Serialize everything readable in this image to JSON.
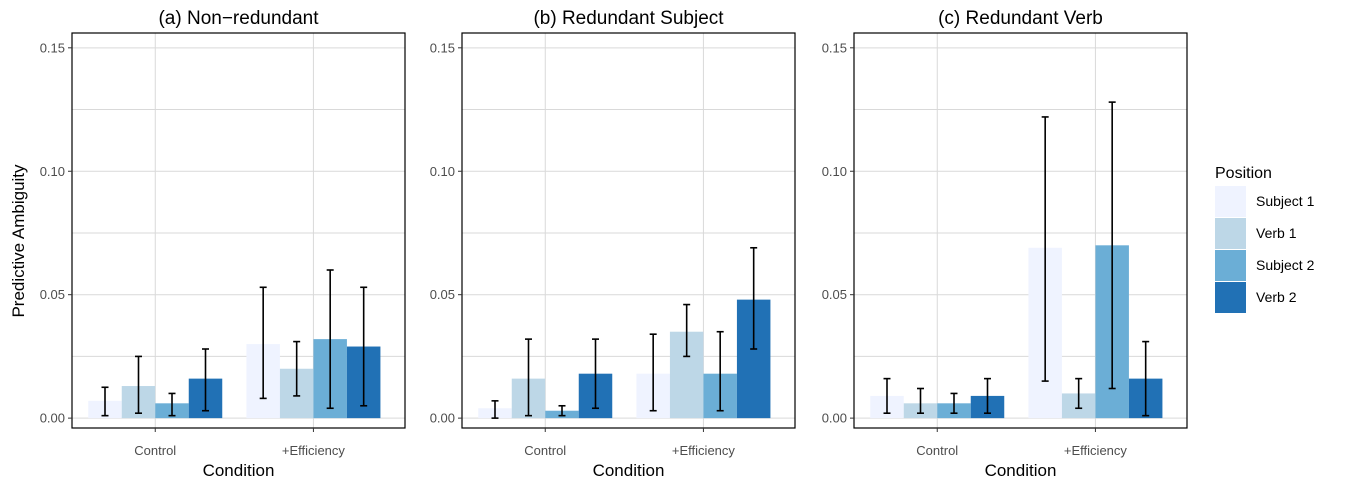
{
  "chart_data": {
    "type": "bar",
    "ylabel": "Predictive Ambiguity",
    "xlabel": "Condition",
    "ylim": [
      -0.004,
      0.156
    ],
    "yticks": [
      0.0,
      0.05,
      0.1,
      0.15
    ],
    "ytick_labels": [
      "0.00",
      "0.05",
      "0.10",
      "0.15"
    ],
    "categories": [
      "Control",
      "+Efficiency"
    ],
    "legend": {
      "title": "Position",
      "placement": "right",
      "entries": [
        "Subject 1",
        "Verb 1",
        "Subject 2",
        "Verb 2"
      ]
    },
    "colors": [
      "#EFF3FF",
      "#BDD7E7",
      "#6BAED6",
      "#2171B5"
    ],
    "grid": true,
    "panels": [
      {
        "title": "(a) Non−redundant",
        "series": [
          {
            "name": "Subject 1",
            "values": [
              0.007,
              0.03
            ],
            "err_low": [
              0.001,
              0.008
            ],
            "err_high": [
              0.0125,
              0.053
            ]
          },
          {
            "name": "Verb 1",
            "values": [
              0.013,
              0.02
            ],
            "err_low": [
              0.002,
              0.009
            ],
            "err_high": [
              0.025,
              0.031
            ]
          },
          {
            "name": "Subject 2",
            "values": [
              0.006,
              0.032
            ],
            "err_low": [
              0.001,
              0.004
            ],
            "err_high": [
              0.01,
              0.06
            ]
          },
          {
            "name": "Verb 2",
            "values": [
              0.016,
              0.029
            ],
            "err_low": [
              0.003,
              0.005
            ],
            "err_high": [
              0.028,
              0.053
            ]
          }
        ]
      },
      {
        "title": "(b) Redundant Subject",
        "series": [
          {
            "name": "Subject 1",
            "values": [
              0.004,
              0.018
            ],
            "err_low": [
              0.0,
              0.003
            ],
            "err_high": [
              0.007,
              0.034
            ]
          },
          {
            "name": "Verb 1",
            "values": [
              0.016,
              0.035
            ],
            "err_low": [
              0.001,
              0.025
            ],
            "err_high": [
              0.032,
              0.046
            ]
          },
          {
            "name": "Subject 2",
            "values": [
              0.003,
              0.018
            ],
            "err_low": [
              0.001,
              0.003
            ],
            "err_high": [
              0.005,
              0.035
            ]
          },
          {
            "name": "Verb 2",
            "values": [
              0.018,
              0.048
            ],
            "err_low": [
              0.004,
              0.028
            ],
            "err_high": [
              0.032,
              0.069
            ]
          }
        ]
      },
      {
        "title": "(c) Redundant Verb",
        "series": [
          {
            "name": "Subject 1",
            "values": [
              0.009,
              0.069
            ],
            "err_low": [
              0.002,
              0.015
            ],
            "err_high": [
              0.016,
              0.122
            ]
          },
          {
            "name": "Verb 1",
            "values": [
              0.006,
              0.01
            ],
            "err_low": [
              0.002,
              0.004
            ],
            "err_high": [
              0.012,
              0.016
            ]
          },
          {
            "name": "Subject 2",
            "values": [
              0.006,
              0.07
            ],
            "err_low": [
              0.002,
              0.012
            ],
            "err_high": [
              0.01,
              0.128
            ]
          },
          {
            "name": "Verb 2",
            "values": [
              0.009,
              0.016
            ],
            "err_low": [
              0.002,
              0.001
            ],
            "err_high": [
              0.016,
              0.031
            ]
          }
        ]
      }
    ]
  }
}
